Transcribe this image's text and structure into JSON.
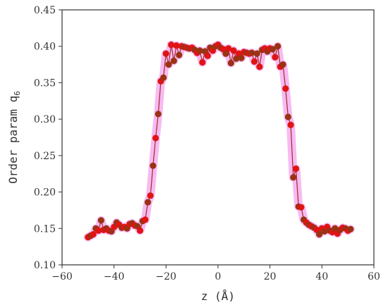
{
  "chart_data": {
    "type": "scatter",
    "title": "",
    "xlabel": "z (Å)",
    "ylabel": {
      "main": "Order param q",
      "subscript": "6"
    },
    "xlim": [
      -60,
      60
    ],
    "ylim": [
      0.1,
      0.45
    ],
    "xticks": [
      "−60",
      "−40",
      "−20",
      "0",
      "20",
      "40",
      "60"
    ],
    "yticks": [
      "0.10",
      "0.15",
      "0.20",
      "0.25",
      "0.30",
      "0.35",
      "0.40",
      "0.45"
    ],
    "grid": false,
    "legend": "none",
    "colors": {
      "marker_a": "#e01414",
      "marker_b": "#9a3314",
      "halo": "#f4a3ee",
      "line": "#a52828",
      "axis": "#333333"
    },
    "series": [
      {
        "points": [
          [
            -50,
            0.138
          ],
          [
            -49,
            0.14
          ],
          [
            -48,
            0.142
          ],
          [
            -47,
            0.15
          ],
          [
            -46,
            0.147
          ],
          [
            -45,
            0.161
          ],
          [
            -44,
            0.148
          ],
          [
            -43,
            0.15
          ],
          [
            -42,
            0.147
          ],
          [
            -41,
            0.146
          ],
          [
            -40,
            0.152
          ],
          [
            -39,
            0.158
          ],
          [
            -38,
            0.155
          ],
          [
            -37,
            0.151
          ],
          [
            -36,
            0.152
          ],
          [
            -35,
            0.15
          ],
          [
            -34,
            0.156
          ],
          [
            -33,
            0.157
          ],
          [
            -32,
            0.154
          ],
          [
            -31,
            0.153
          ],
          [
            -30,
            0.147
          ],
          [
            -29,
            0.16
          ],
          [
            -28,
            0.162
          ],
          [
            -27,
            0.186
          ],
          [
            -26,
            0.195
          ],
          [
            -25,
            0.236
          ],
          [
            -24,
            0.274
          ],
          [
            -23,
            0.307
          ],
          [
            -22,
            0.352
          ],
          [
            -21,
            0.357
          ],
          [
            -20,
            0.39
          ],
          [
            -19,
            0.375
          ],
          [
            -18,
            0.402
          ],
          [
            -17,
            0.38
          ],
          [
            -16,
            0.401
          ],
          [
            -15,
            0.388
          ],
          [
            -14,
            0.4
          ],
          [
            -13,
            0.399
          ],
          [
            -12,
            0.398
          ],
          [
            -11,
            0.397
          ],
          [
            -10,
            0.398
          ],
          [
            -9,
            0.395
          ],
          [
            -8,
            0.391
          ],
          [
            -7,
            0.394
          ],
          [
            -6,
            0.378
          ],
          [
            -5,
            0.393
          ],
          [
            -4,
            0.387
          ],
          [
            -3,
            0.398
          ],
          [
            -2,
            0.394
          ],
          [
            -1,
            0.4
          ],
          [
            0,
            0.402
          ],
          [
            1,
            0.398
          ],
          [
            2,
            0.396
          ],
          [
            3,
            0.39
          ],
          [
            4,
            0.397
          ],
          [
            5,
            0.377
          ],
          [
            6,
            0.394
          ],
          [
            7,
            0.383
          ],
          [
            8,
            0.39
          ],
          [
            9,
            0.384
          ],
          [
            10,
            0.392
          ],
          [
            11,
            0.391
          ],
          [
            12,
            0.39
          ],
          [
            13,
            0.391
          ],
          [
            14,
            0.379
          ],
          [
            15,
            0.39
          ],
          [
            16,
            0.372
          ],
          [
            17,
            0.395
          ],
          [
            18,
            0.397
          ],
          [
            19,
            0.393
          ],
          [
            20,
            0.397
          ],
          [
            21,
            0.396
          ],
          [
            22,
            0.385
          ],
          [
            23,
            0.4
          ],
          [
            24,
            0.372
          ],
          [
            25,
            0.375
          ],
          [
            26,
            0.342
          ],
          [
            27,
            0.303
          ],
          [
            28,
            0.292
          ],
          [
            29,
            0.22
          ],
          [
            30,
            0.232
          ],
          [
            31,
            0.18
          ],
          [
            32,
            0.179
          ],
          [
            33,
            0.162
          ],
          [
            34,
            0.158
          ],
          [
            35,
            0.155
          ],
          [
            36,
            0.153
          ],
          [
            37,
            0.151
          ],
          [
            38,
            0.148
          ],
          [
            39,
            0.142
          ],
          [
            40,
            0.15
          ],
          [
            41,
            0.146
          ],
          [
            42,
            0.152
          ],
          [
            43,
            0.147
          ],
          [
            44,
            0.145
          ],
          [
            45,
            0.15
          ],
          [
            46,
            0.143
          ],
          [
            47,
            0.148
          ],
          [
            48,
            0.151
          ],
          [
            49,
            0.15
          ],
          [
            50,
            0.147
          ],
          [
            51,
            0.149
          ]
        ]
      }
    ]
  }
}
